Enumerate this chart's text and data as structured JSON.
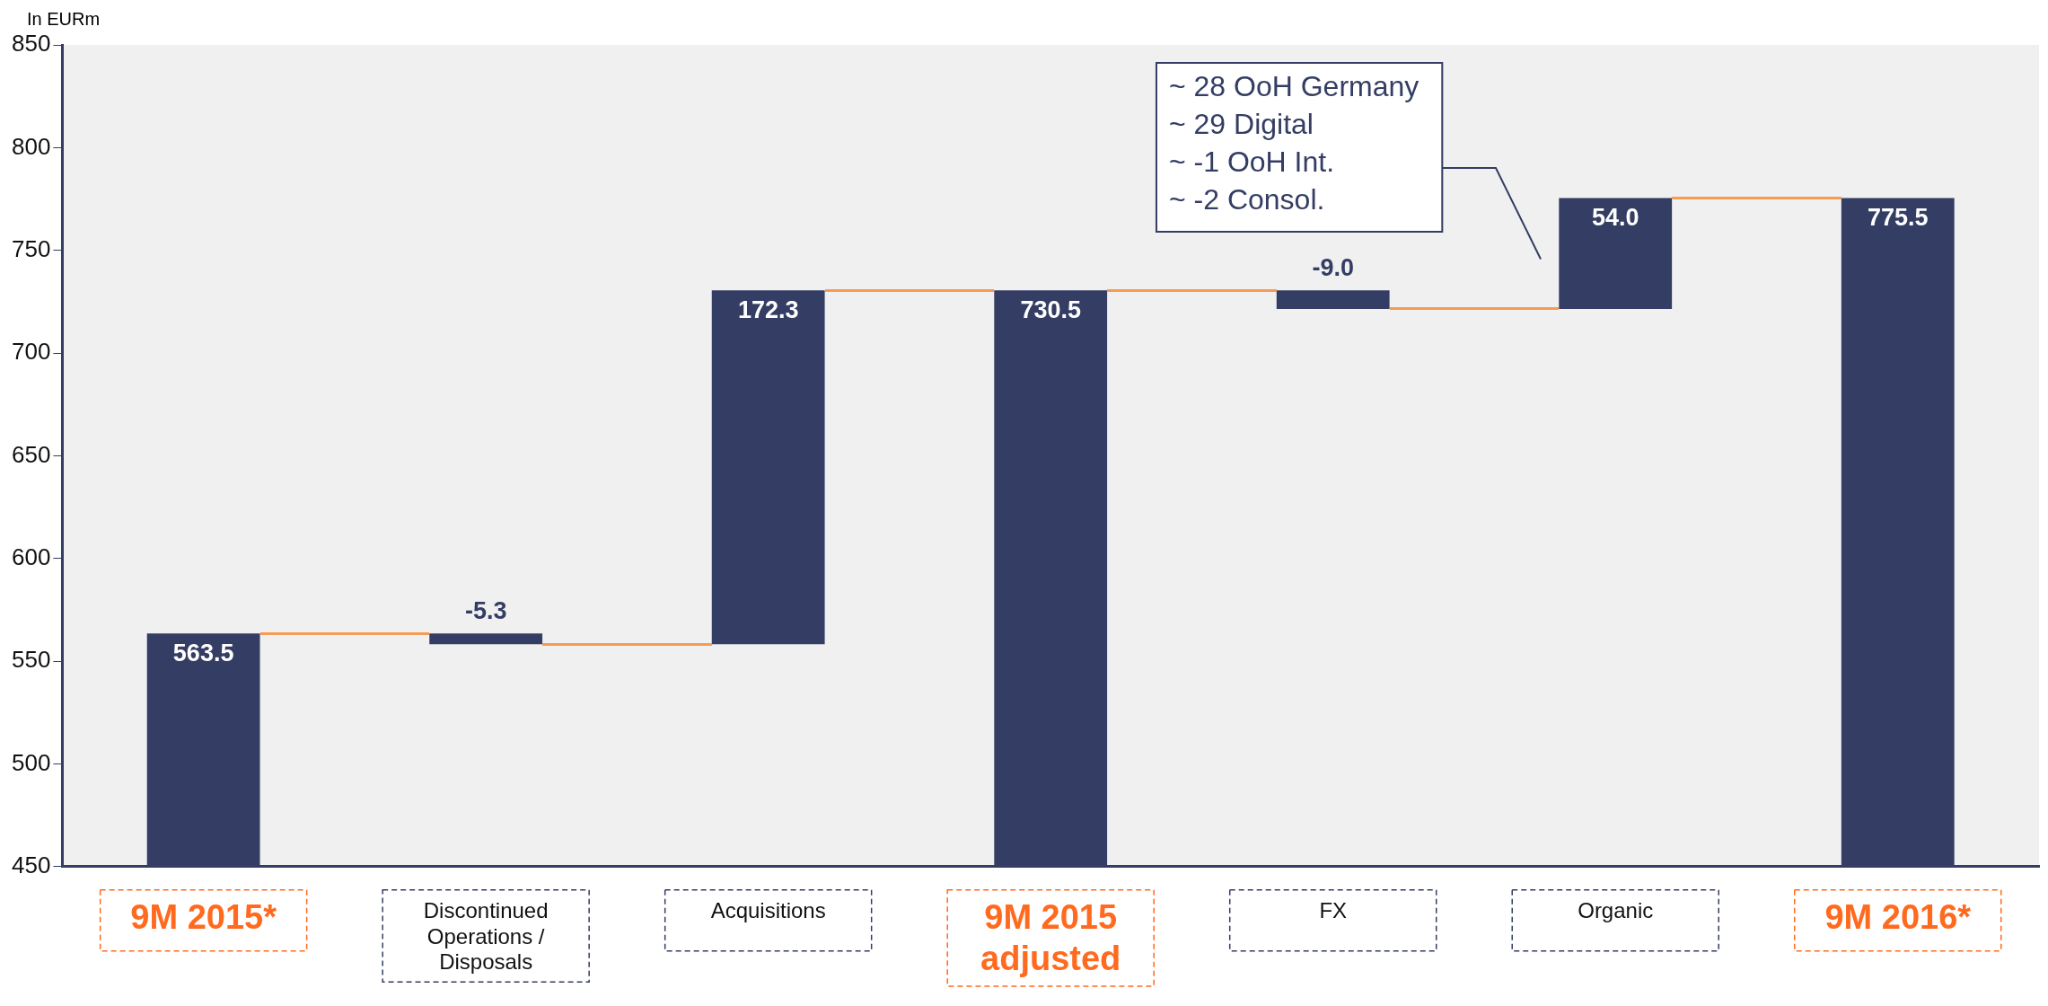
{
  "chart_data": {
    "type": "bar",
    "ylabel": "In EURm",
    "categories": [
      "9M 2015*",
      "Discontinued Operations / Disposals",
      "Acquisitions",
      "9M 2015 adjusted",
      "FX",
      "Organic",
      "9M 2016*"
    ],
    "values": [
      563.5,
      -5.3,
      172.3,
      730.5,
      -9.0,
      54.0,
      775.5
    ],
    "base": [
      0,
      563.5,
      558.2,
      0,
      730.5,
      721.5,
      0
    ],
    "color": "#343d63",
    "ylim": [
      450,
      850
    ],
    "yticks": [
      450,
      500,
      550,
      600,
      650,
      700,
      750,
      800,
      850
    ],
    "value_labels": [
      "563.5",
      "-5.3",
      "172.3",
      "730.5",
      "-9.0",
      "54.0",
      "775.5"
    ],
    "annotations": [
      "~ 28 OoH Germany\n~ 29 Digital\n~ -1 OoH Int.\n~ -2 Consol."
    ]
  }
}
